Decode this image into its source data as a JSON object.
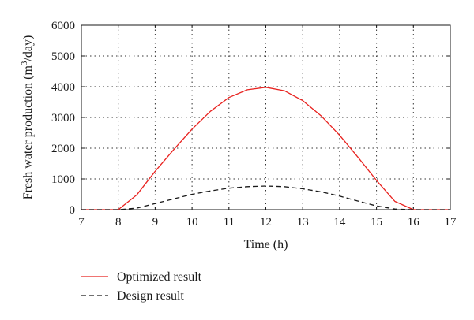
{
  "chart_data": {
    "type": "line",
    "xlabel": "Time (h)",
    "ylabel": {
      "prefix": "Fresh water production (m",
      "superscript": "3",
      "suffix": "/day)"
    },
    "xlim": [
      7,
      17
    ],
    "ylim": [
      0,
      6000
    ],
    "xticks": [
      7,
      8,
      9,
      10,
      11,
      12,
      13,
      14,
      15,
      16,
      17
    ],
    "yticks": [
      0,
      1000,
      2000,
      3000,
      4000,
      5000,
      6000
    ],
    "grid": true,
    "legend_position": "bottom-left-outside",
    "series": [
      {
        "name": "Optimized result",
        "color": "#e8221f",
        "dash": "solid",
        "x": [
          7,
          7.5,
          8,
          8.5,
          9,
          9.5,
          10,
          10.5,
          11,
          11.5,
          12,
          12.5,
          13,
          13.5,
          14,
          14.5,
          15,
          15.5,
          16,
          16.5,
          17
        ],
        "y": [
          0,
          0,
          0,
          480,
          1250,
          1950,
          2620,
          3200,
          3650,
          3900,
          3980,
          3870,
          3550,
          3050,
          2420,
          1700,
          950,
          270,
          0,
          0,
          0
        ]
      },
      {
        "name": "Design result",
        "color": "#1a1a1a",
        "dash": "dashed",
        "x": [
          7,
          7.5,
          8,
          8.5,
          9,
          9.5,
          10,
          10.5,
          11,
          11.5,
          12,
          12.5,
          13,
          13.5,
          14,
          14.5,
          15,
          15.5,
          16,
          16.5,
          17
        ],
        "y": [
          0,
          0,
          0,
          50,
          200,
          350,
          500,
          610,
          700,
          750,
          770,
          750,
          680,
          580,
          440,
          280,
          120,
          20,
          0,
          0,
          0
        ]
      }
    ]
  }
}
